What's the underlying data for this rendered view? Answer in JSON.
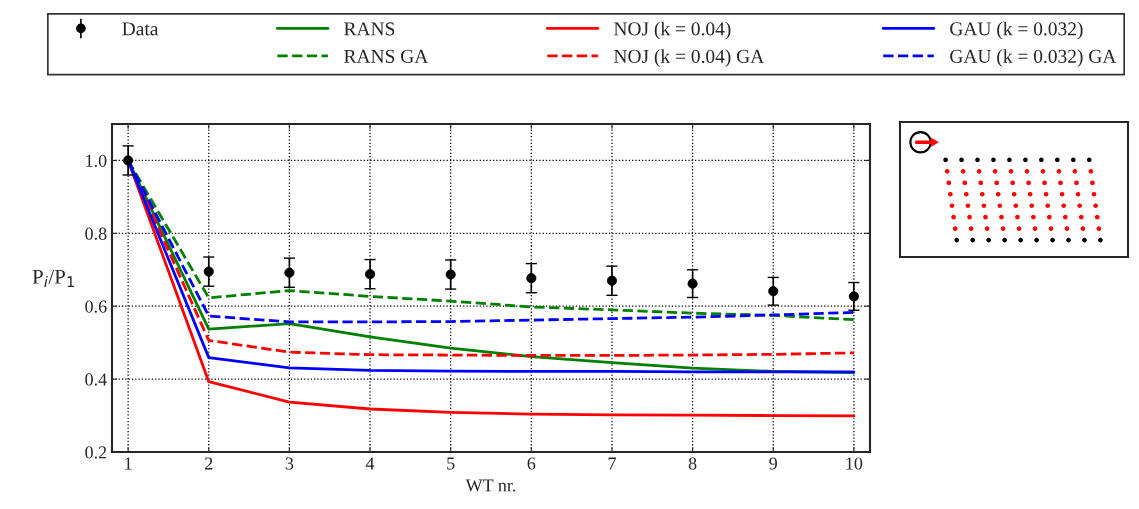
{
  "chart_data": {
    "type": "line",
    "xlabel": "WT nr.",
    "ylabel": "P$_{i}$/P$_{1}$",
    "x": [
      1,
      2,
      3,
      4,
      5,
      6,
      7,
      8,
      9,
      10
    ],
    "series": [
      {
        "name": "Data",
        "type": "scatter",
        "color": "#000000",
        "marker": "circle",
        "values": [
          1.0,
          0.695,
          0.692,
          0.688,
          0.687,
          0.677,
          0.67,
          0.662,
          0.641,
          0.627
        ],
        "errors": [
          0.04,
          0.04,
          0.04,
          0.04,
          0.04,
          0.04,
          0.04,
          0.038,
          0.038,
          0.038
        ]
      },
      {
        "name": "RANS",
        "color": "#008000",
        "line_style": "solid",
        "values": [
          1.0,
          0.537,
          0.552,
          0.516,
          0.485,
          0.462,
          0.445,
          0.43,
          0.421,
          0.418
        ]
      },
      {
        "name": "RANS GA",
        "color": "#008000",
        "line_style": "dashed",
        "values": [
          1.0,
          0.623,
          0.643,
          0.627,
          0.614,
          0.598,
          0.59,
          0.581,
          0.575,
          0.563
        ]
      },
      {
        "name": "NOJ (k = 0.04)",
        "color": "#ff0000",
        "line_style": "solid",
        "values": [
          1.0,
          0.393,
          0.337,
          0.318,
          0.309,
          0.304,
          0.302,
          0.301,
          0.3,
          0.299
        ]
      },
      {
        "name": "NOJ (k = 0.04) GA",
        "color": "#ff0000",
        "line_style": "dashed",
        "values": [
          1.0,
          0.506,
          0.474,
          0.467,
          0.466,
          0.465,
          0.465,
          0.466,
          0.468,
          0.472
        ]
      },
      {
        "name": "GAU (k = 0.032)",
        "color": "#0000ff",
        "line_style": "solid",
        "values": [
          1.0,
          0.459,
          0.431,
          0.424,
          0.422,
          0.421,
          0.421,
          0.42,
          0.42,
          0.42
        ]
      },
      {
        "name": "GAU (k = 0.032) GA",
        "color": "#0000ff",
        "line_style": "dashed",
        "values": [
          1.0,
          0.573,
          0.557,
          0.557,
          0.558,
          0.562,
          0.566,
          0.57,
          0.576,
          0.583
        ]
      }
    ],
    "xlim": [
      0.8,
      10.2
    ],
    "xticks": [
      1,
      2,
      3,
      4,
      5,
      6,
      7,
      8,
      9,
      10
    ],
    "ylim": [
      0.2,
      1.1
    ],
    "yticks": [
      0.2,
      0.4,
      0.6,
      0.8,
      {
        "value": 1,
        "label": "1.0"
      }
    ],
    "grid": true,
    "legend": "top"
  }
}
